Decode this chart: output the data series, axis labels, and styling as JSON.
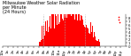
{
  "title": "Milwaukee Weather Solar Radiation\nper Minute\n(24 Hours)",
  "title_fontsize": 3.5,
  "background_color": "#ffffff",
  "bar_color": "#ff0000",
  "num_points": 1440,
  "peak_minute": 780,
  "peak_value": 7.8,
  "sigma": 180,
  "sunrise": 420,
  "sunset": 1140,
  "noise_amplitude": 2.5,
  "ylim": [
    0,
    9
  ],
  "xlim": [
    0,
    1440
  ],
  "ytick_values": [
    0,
    1,
    2,
    3,
    4,
    5,
    6,
    7,
    8
  ],
  "vline_positions": [
    480,
    720,
    960
  ],
  "vline_color": "#aaaaaa",
  "xtick_positions": [
    0,
    60,
    120,
    180,
    240,
    300,
    360,
    420,
    480,
    540,
    600,
    660,
    720,
    780,
    840,
    900,
    960,
    1020,
    1080,
    1140,
    1200,
    1260,
    1320,
    1380
  ],
  "xtick_labels": [
    "12a",
    "1a",
    "2a",
    "3a",
    "4a",
    "5a",
    "6a",
    "7a",
    "8a",
    "9a",
    "10a",
    "11a",
    "12p",
    "1p",
    "2p",
    "3p",
    "4p",
    "5p",
    "6p",
    "7p",
    "8p",
    "9p",
    "10p",
    "11p"
  ],
  "tick_fontsize": 2.8,
  "scatter_x": [
    1350,
    1360,
    1370
  ],
  "scatter_y": [
    8.2,
    7.5,
    6.8
  ]
}
